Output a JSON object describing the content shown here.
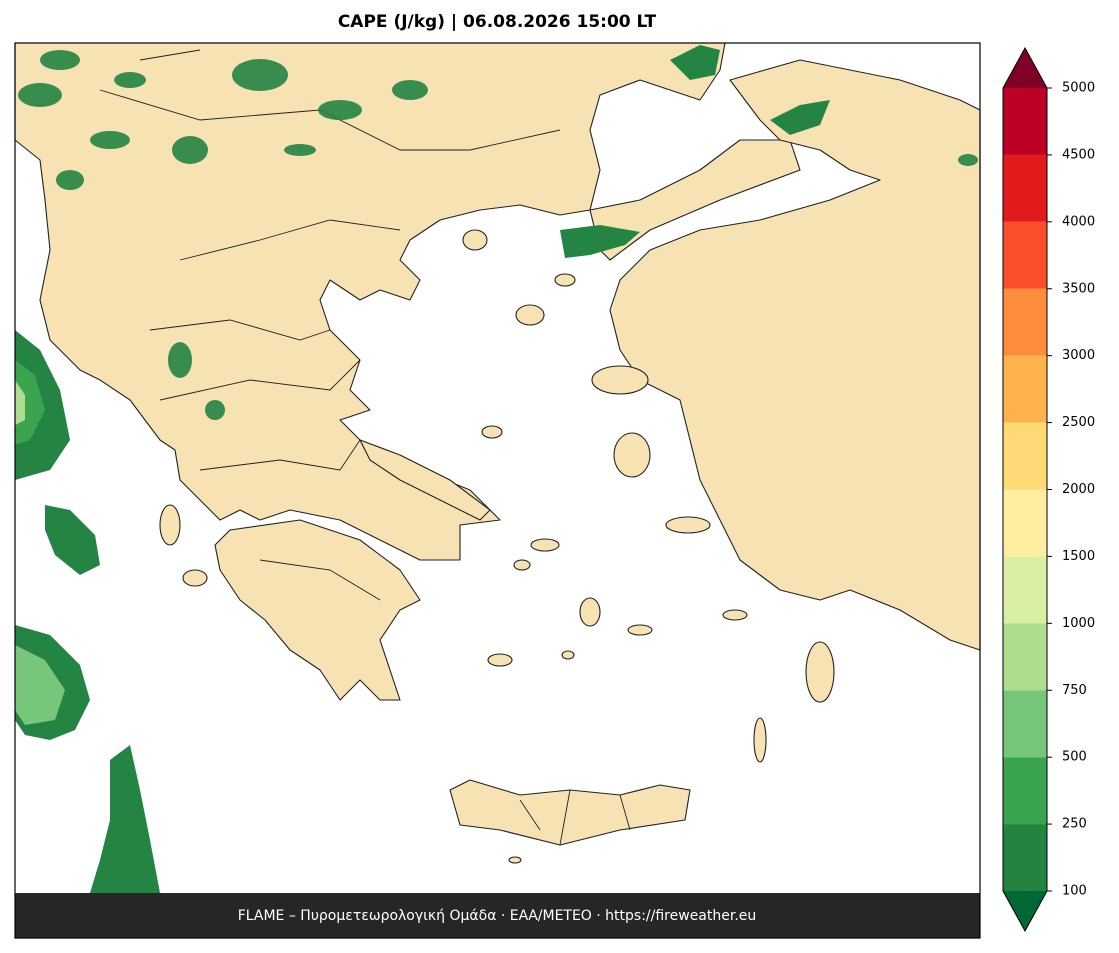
{
  "title": "CAPE (J/kg)  |  06.08.2026 15:00 LT",
  "footer": "FLAME – Πυρομετεωρολογική Ομάδα · ΕΑΑ/METEO · https://fireweather.eu",
  "colorbar": {
    "ticks": [
      100,
      250,
      500,
      750,
      1000,
      1500,
      2000,
      2500,
      3000,
      3500,
      4000,
      4500,
      5000
    ],
    "colors": [
      "#23843f",
      "#3aa44e",
      "#78c679",
      "#addd8e",
      "#d9f0a3",
      "#ffeda0",
      "#fed976",
      "#feb24c",
      "#fd8d3c",
      "#fc4e2a",
      "#e31a1c",
      "#bd0026"
    ],
    "under_color": "#006837",
    "over_color": "#800026"
  }
}
